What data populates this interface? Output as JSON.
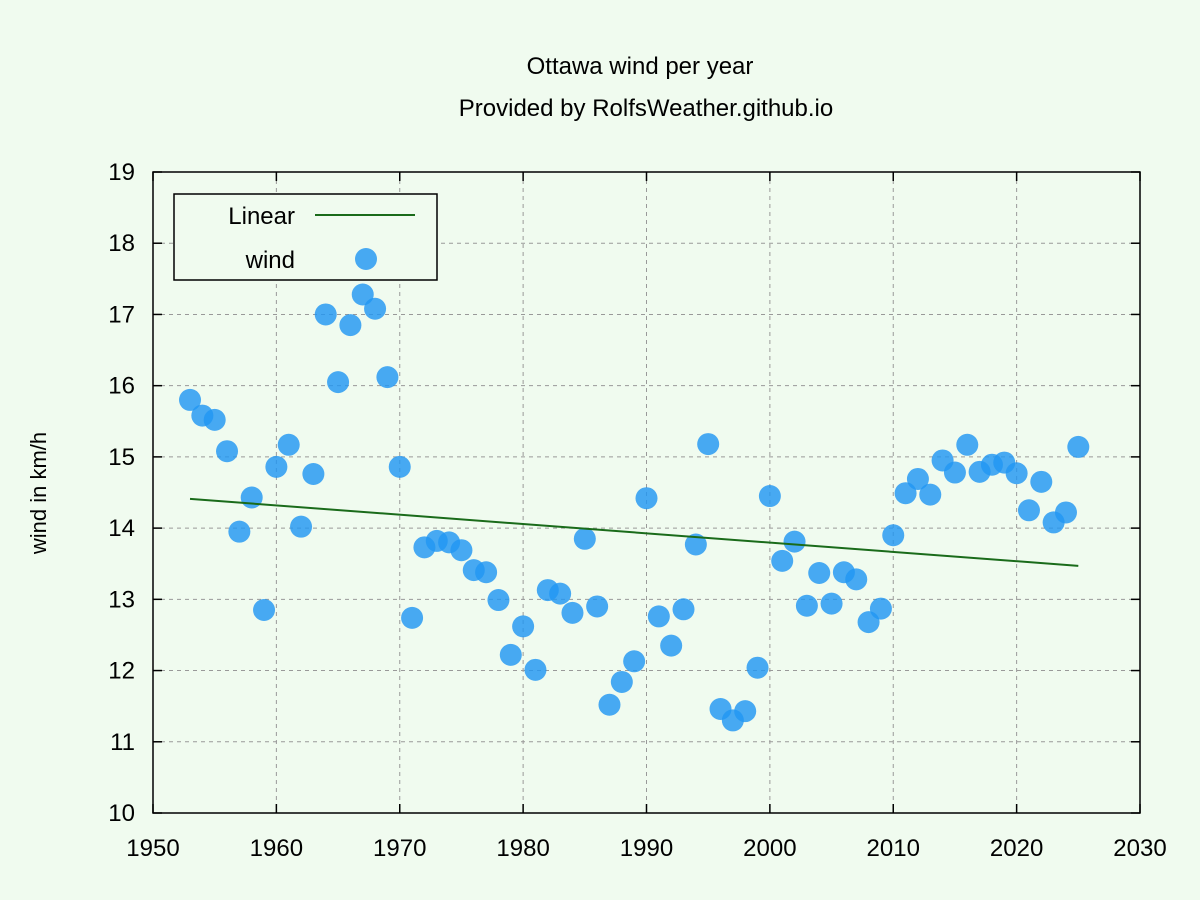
{
  "chart_data": {
    "type": "scatter",
    "title": "Ottawa wind per year",
    "subtitle": "Provided by RolfsWeather.github.io",
    "xlabel": "",
    "ylabel": "wind in km/h",
    "xlim": [
      1950,
      2030
    ],
    "ylim": [
      10,
      19
    ],
    "xticks": [
      1950,
      1960,
      1970,
      1980,
      1990,
      2000,
      2010,
      2020,
      2030
    ],
    "yticks": [
      10,
      11,
      12,
      13,
      14,
      15,
      16,
      17,
      18,
      19
    ],
    "grid": true,
    "legend": {
      "position": "top-left",
      "entries": [
        {
          "label": "Linear",
          "kind": "line",
          "color": "#1a6b1a"
        },
        {
          "label": "wind",
          "kind": "marker",
          "color": "#2196f3"
        }
      ]
    },
    "series": [
      {
        "name": "wind",
        "kind": "scatter",
        "color": "#2196f3",
        "x": [
          1953,
          1954,
          1955,
          1956,
          1957,
          1958,
          1959,
          1960,
          1961,
          1962,
          1963,
          1964,
          1965,
          1966,
          1967,
          1968,
          1969,
          1970,
          1971,
          1972,
          1973,
          1974,
          1975,
          1976,
          1977,
          1978,
          1979,
          1980,
          1981,
          1982,
          1983,
          1984,
          1985,
          1986,
          1987,
          1988,
          1989,
          1990,
          1991,
          1992,
          1993,
          1994,
          1995,
          1996,
          1997,
          1998,
          1999,
          2000,
          2001,
          2002,
          2003,
          2004,
          2005,
          2006,
          2007,
          2008,
          2009,
          2010,
          2011,
          2012,
          2013,
          2014,
          2015,
          2016,
          2017,
          2018,
          2019,
          2020,
          2021,
          2022,
          2023,
          2024,
          2025
        ],
        "y": [
          15.8,
          15.58,
          15.52,
          15.08,
          13.95,
          14.43,
          12.85,
          14.86,
          15.17,
          14.02,
          14.76,
          17.0,
          16.05,
          16.85,
          17.28,
          17.08,
          16.12,
          14.86,
          12.74,
          13.73,
          13.82,
          13.8,
          13.69,
          13.41,
          13.38,
          12.99,
          12.22,
          12.62,
          12.01,
          13.13,
          13.08,
          12.81,
          13.85,
          12.9,
          11.52,
          11.84,
          12.13,
          14.42,
          12.76,
          12.35,
          12.86,
          13.77,
          15.18,
          11.46,
          11.3,
          11.43,
          12.04,
          14.45,
          13.54,
          13.81,
          12.91,
          13.37,
          12.94,
          13.38,
          13.28,
          12.68,
          12.87,
          13.9,
          14.49,
          14.69,
          14.47,
          14.95,
          14.78,
          15.17,
          14.79,
          14.89,
          14.92,
          14.77,
          14.25,
          14.65,
          14.08,
          14.22,
          15.14
        ]
      },
      {
        "name": "Linear",
        "kind": "line",
        "color": "#1a6b1a",
        "x": [
          1953,
          2025
        ],
        "y": [
          14.41,
          13.47
        ]
      }
    ]
  }
}
